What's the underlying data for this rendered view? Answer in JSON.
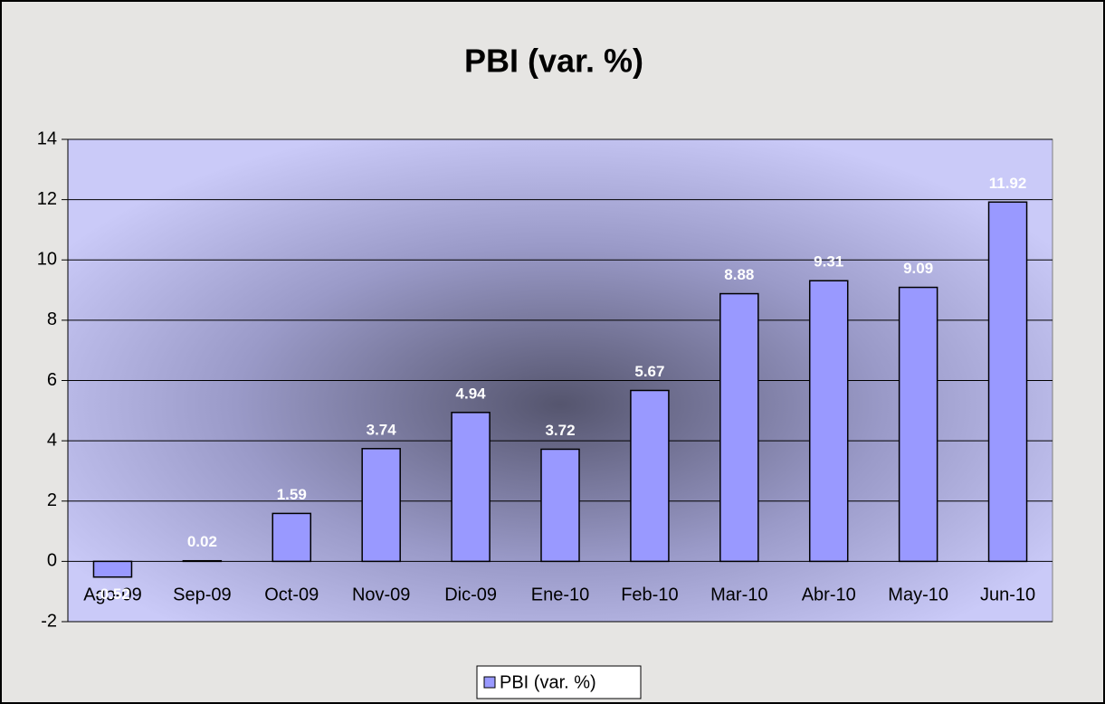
{
  "chart_data": {
    "type": "bar",
    "title": "PBI (var. %)",
    "categories": [
      "Ago-09",
      "Sep-09",
      "Oct-09",
      "Nov-09",
      "Dic-09",
      "Ene-10",
      "Feb-10",
      "Mar-10",
      "Abr-10",
      "May-10",
      "Jun-10"
    ],
    "series": [
      {
        "name": "PBI (var. %)",
        "color": "#9999ff",
        "values": [
          -0.52,
          0.02,
          1.59,
          3.74,
          4.94,
          3.72,
          5.67,
          8.88,
          9.31,
          9.09,
          11.92
        ]
      }
    ],
    "ylim": [
      -2,
      14
    ],
    "yticks": [
      -2,
      0,
      2,
      4,
      6,
      8,
      10,
      12,
      14
    ],
    "grid": true,
    "legend": "bottom"
  }
}
